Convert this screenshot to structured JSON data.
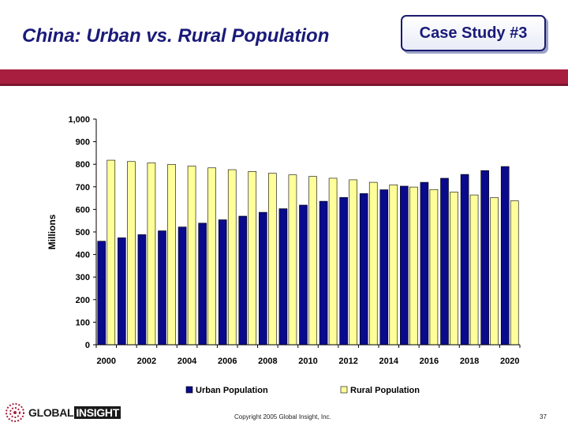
{
  "header": {
    "title": "China: Urban vs. Rural Population",
    "case_label": "Case Study #3"
  },
  "footer": {
    "logo_global": "GLOBAL",
    "logo_insight": "INSIGHT",
    "copyright": "Copyright 2005 Global Insight, Inc.",
    "page_number": "37"
  },
  "colors": {
    "urban": "#0a0a8c",
    "rural": "#ffff99",
    "band": "#a81e3f",
    "title": "#1a1a7a"
  },
  "chart_data": {
    "type": "bar",
    "title": "",
    "xlabel": "",
    "ylabel": "Millions",
    "ylim": [
      0,
      1000
    ],
    "yticks": [
      0,
      100,
      200,
      300,
      400,
      500,
      600,
      700,
      800,
      900,
      1000
    ],
    "ytick_labels": [
      "0",
      "100",
      "200",
      "300",
      "400",
      "500",
      "600",
      "700",
      "800",
      "900",
      "1,000"
    ],
    "categories": [
      "2000",
      "2001",
      "2002",
      "2003",
      "2004",
      "2005",
      "2006",
      "2007",
      "2008",
      "2009",
      "2010",
      "2011",
      "2012",
      "2013",
      "2014",
      "2015",
      "2016",
      "2017",
      "2018",
      "2019",
      "2020"
    ],
    "xtick_labels": [
      "2000",
      "",
      "2002",
      "",
      "2004",
      "",
      "2006",
      "",
      "2008",
      "",
      "2010",
      "",
      "2012",
      "",
      "2014",
      "",
      "2016",
      "",
      "2018",
      "",
      "2020"
    ],
    "legend_position": "bottom",
    "series": [
      {
        "name": "Urban Population",
        "values": [
          459,
          474,
          488,
          505,
          522,
          539,
          554,
          570,
          587,
          603,
          619,
          636,
          653,
          670,
          687,
          703,
          720,
          738,
          755,
          772,
          790
        ]
      },
      {
        "name": "Rural Population",
        "values": [
          818,
          812,
          806,
          799,
          792,
          784,
          776,
          768,
          760,
          753,
          746,
          738,
          731,
          720,
          709,
          699,
          688,
          677,
          664,
          652,
          638
        ]
      }
    ]
  }
}
